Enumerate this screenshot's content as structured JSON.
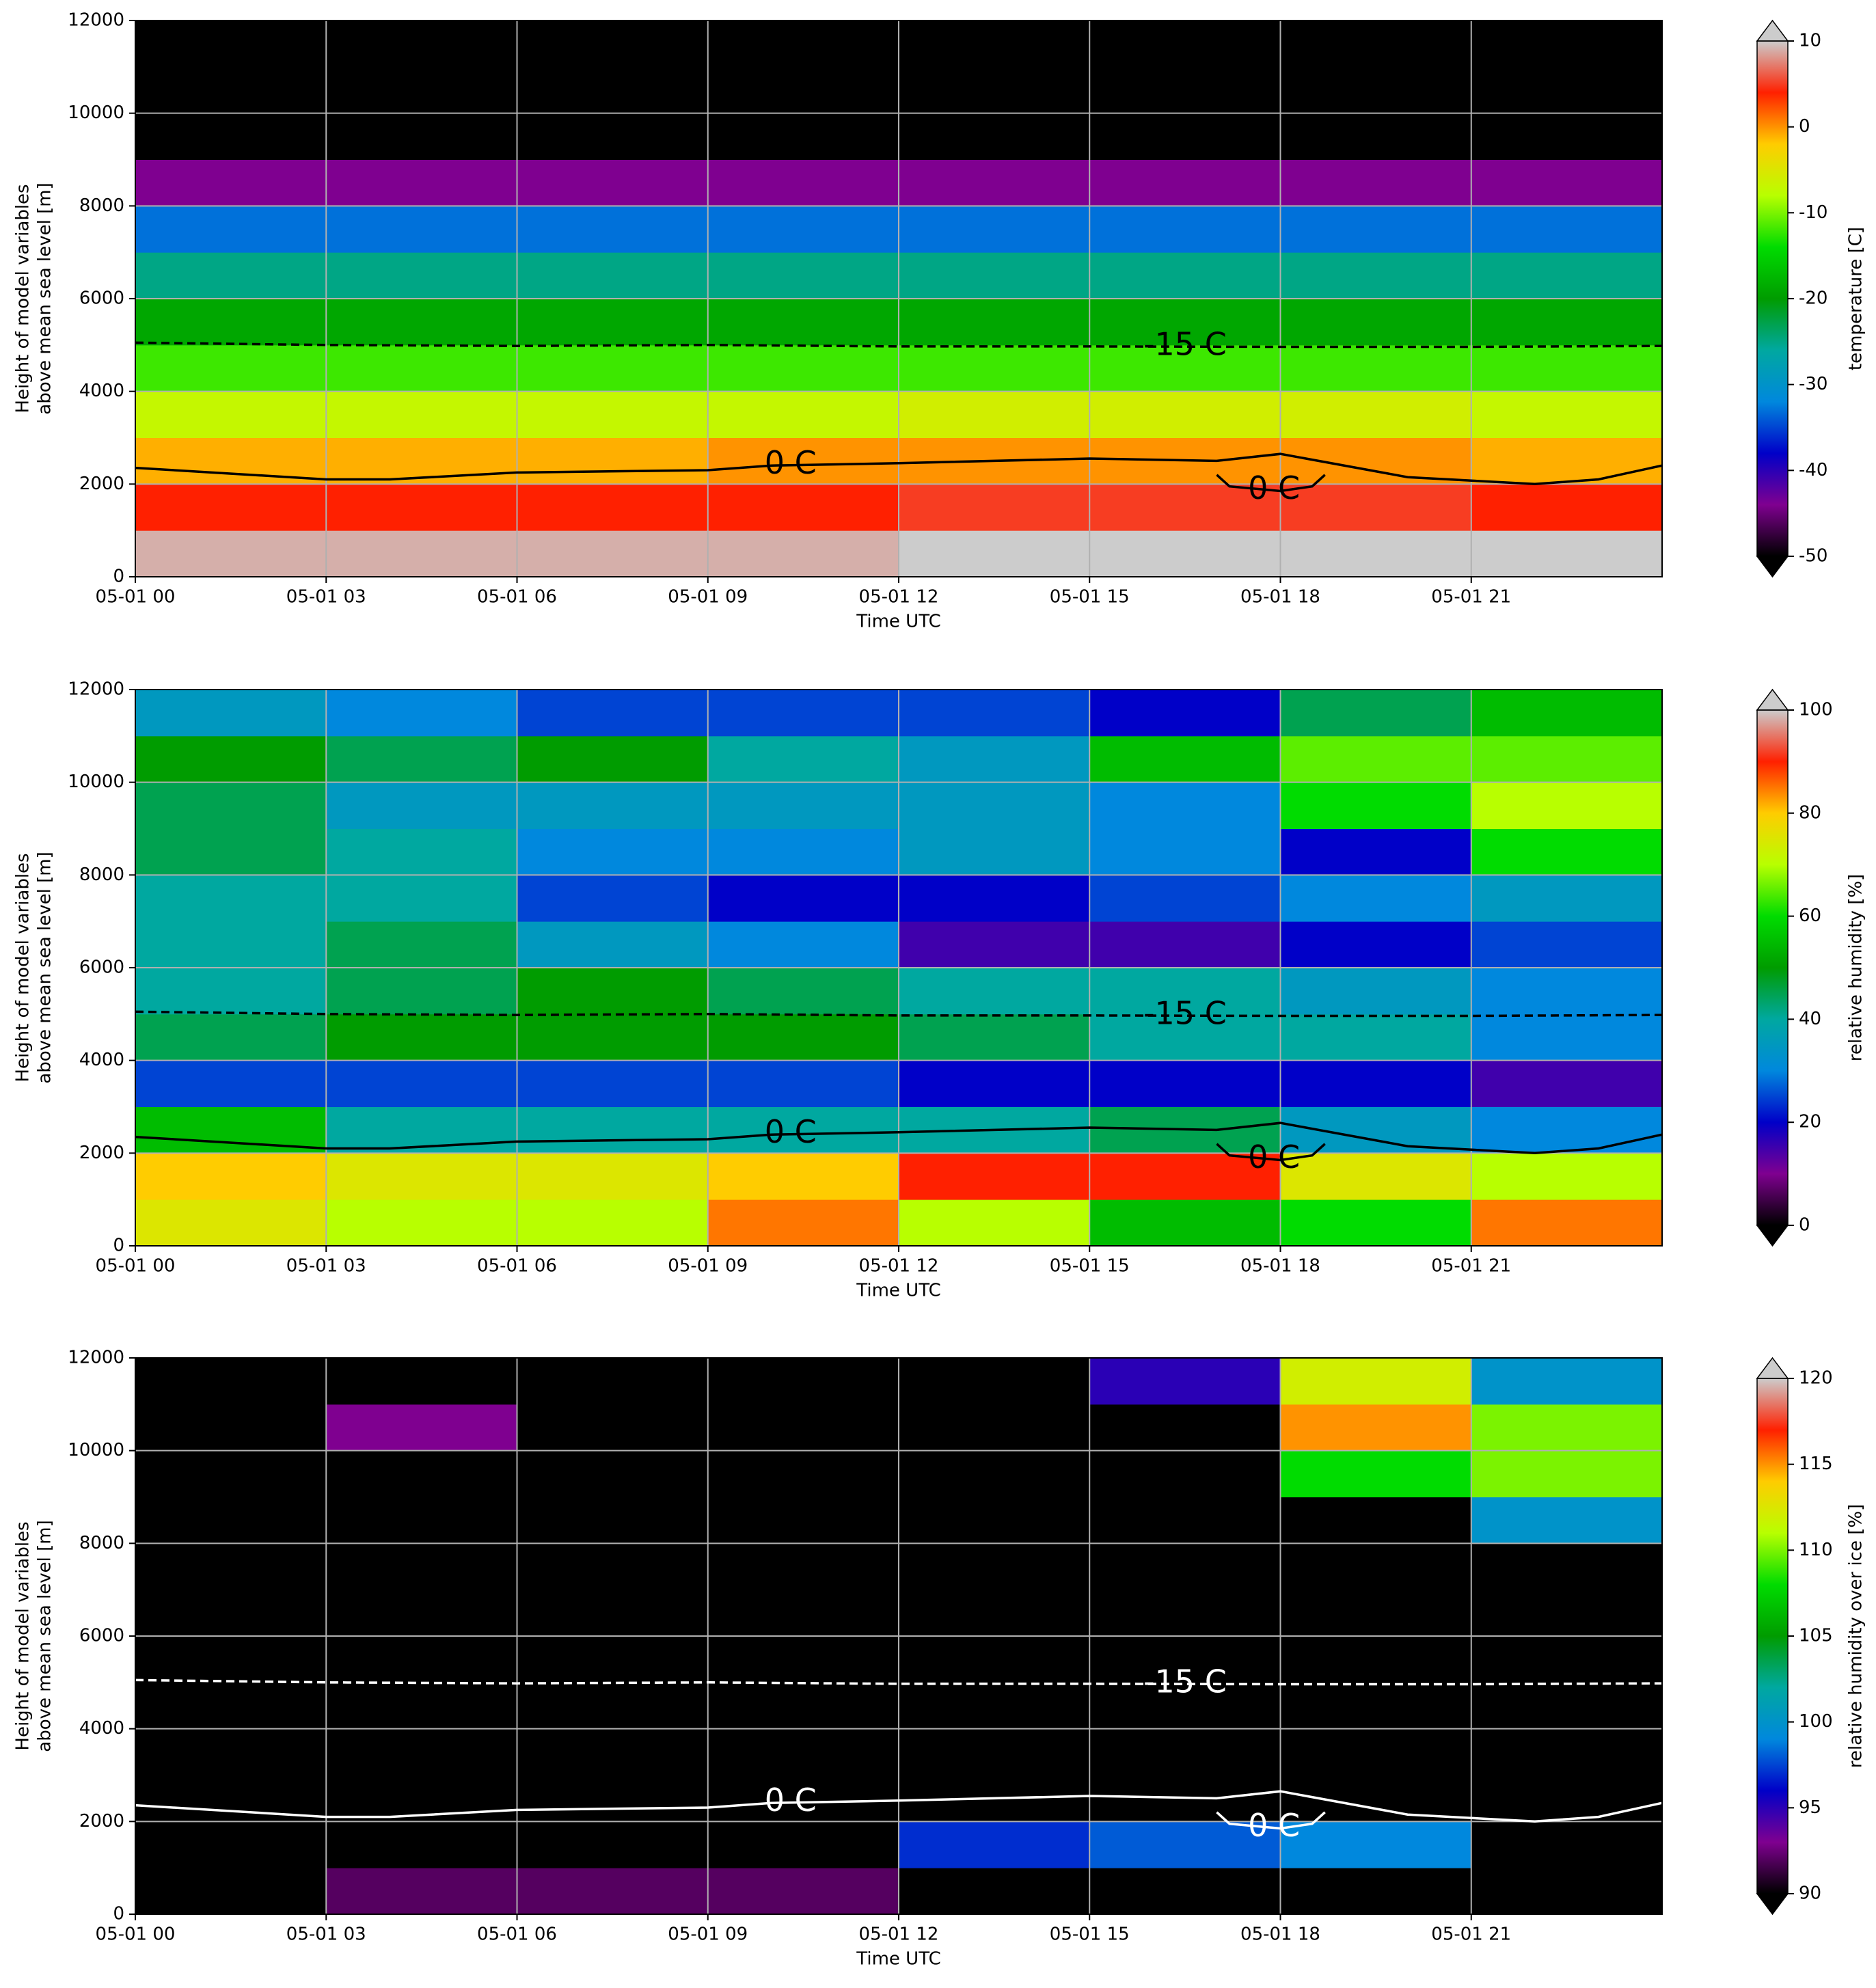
{
  "chart_data": [
    {
      "type": "heatmap",
      "ylabel": [
        "Height of model variables",
        "above mean sea level [m]"
      ],
      "xlabel": "Time UTC",
      "xlim": [
        0,
        24
      ],
      "ylim": [
        0,
        12000
      ],
      "xticks": [
        {
          "value": 0,
          "label": "05-01 00"
        },
        {
          "value": 3,
          "label": "05-01 03"
        },
        {
          "value": 6,
          "label": "05-01 06"
        },
        {
          "value": 9,
          "label": "05-01 09"
        },
        {
          "value": 12,
          "label": "05-01 12"
        },
        {
          "value": 15,
          "label": "05-01 15"
        },
        {
          "value": 18,
          "label": "05-01 18"
        },
        {
          "value": 21,
          "label": "05-01 21"
        }
      ],
      "yticks": [
        0,
        2000,
        4000,
        6000,
        8000,
        10000,
        12000
      ],
      "grid": true,
      "x_edges": [
        0,
        3,
        6,
        9,
        12,
        15,
        18,
        21,
        24
      ],
      "y_edges": [
        0,
        1000,
        2000,
        3000,
        4000,
        5000,
        6000,
        7000,
        8000,
        9000,
        10000,
        11000,
        12000
      ],
      "values": [
        [
          9,
          9,
          9,
          9,
          11,
          12,
          12,
          10
        ],
        [
          4,
          4,
          4,
          4,
          5,
          5,
          5,
          4
        ],
        [
          -1,
          -1,
          -1,
          0,
          0,
          0,
          0,
          -1
        ],
        [
          -7,
          -7,
          -7,
          -7,
          -6,
          -6,
          -6,
          -7
        ],
        [
          -12,
          -12,
          -12,
          -12,
          -12,
          -12,
          -12,
          -12
        ],
        [
          -19,
          -19,
          -19,
          -19,
          -19,
          -19,
          -19,
          -19
        ],
        [
          -25,
          -25,
          -25,
          -25,
          -25,
          -25,
          -25,
          -25
        ],
        [
          -33,
          -33,
          -33,
          -33,
          -33,
          -33,
          -33,
          -33
        ],
        [
          -44,
          -44,
          -44,
          -44,
          -44,
          -44,
          -44,
          -44
        ],
        [
          -55,
          -55,
          -55,
          -55,
          -55,
          -55,
          -55,
          -55
        ],
        [
          -55,
          -55,
          -55,
          -55,
          -55,
          -55,
          -55,
          -55
        ],
        [
          -55,
          -55,
          -55,
          -55,
          -55,
          -55,
          -55,
          -55
        ]
      ],
      "colors": [
        "#000000",
        "#7f0090",
        "#0000c8",
        "#0088dd",
        "#00a8a0",
        "#009c00",
        "#00dc00",
        "#b8ff00",
        "#ffcc00",
        "#ff2000",
        "#cccccc"
      ],
      "colorbar": {
        "label": "temperature [C]",
        "lim": [
          -50,
          10
        ],
        "ticks": [
          -50,
          -40,
          -30,
          -20,
          -10,
          0,
          10
        ]
      },
      "contour_color": "#000000",
      "contours": [
        {
          "name": "0 C",
          "x": [
            0,
            3,
            4,
            6,
            9,
            10,
            12,
            15,
            17,
            18,
            20,
            22,
            23,
            24
          ],
          "y": [
            2350,
            2100,
            2100,
            2250,
            2300,
            2400,
            2450,
            2550,
            2500,
            2650,
            2150,
            2000,
            2100,
            2400
          ]
        },
        {
          "name": "0 C",
          "x": [
            17,
            17.2,
            18,
            18.5,
            18.7
          ],
          "y": [
            2200,
            1950,
            1850,
            1950,
            2200
          ]
        },
        {
          "name": "-15 C",
          "x": [
            0,
            3,
            6,
            9,
            12,
            15,
            18,
            21,
            24
          ],
          "y": [
            5050,
            5000,
            4980,
            5000,
            4970,
            4970,
            4960,
            4960,
            4980
          ],
          "dashed": true
        }
      ]
    },
    {
      "type": "heatmap",
      "ylabel": [
        "Height of model variables",
        "above mean sea level [m]"
      ],
      "xlabel": "Time UTC",
      "xlim": [
        0,
        24
      ],
      "ylim": [
        0,
        12000
      ],
      "xticks": [
        {
          "value": 0,
          "label": "05-01 00"
        },
        {
          "value": 3,
          "label": "05-01 03"
        },
        {
          "value": 6,
          "label": "05-01 06"
        },
        {
          "value": 9,
          "label": "05-01 09"
        },
        {
          "value": 12,
          "label": "05-01 12"
        },
        {
          "value": 15,
          "label": "05-01 15"
        },
        {
          "value": 18,
          "label": "05-01 18"
        },
        {
          "value": 21,
          "label": "05-01 21"
        }
      ],
      "yticks": [
        0,
        2000,
        4000,
        6000,
        8000,
        10000,
        12000
      ],
      "grid": true,
      "x_edges": [
        0,
        3,
        6,
        9,
        12,
        15,
        18,
        21,
        24
      ],
      "y_edges": [
        0,
        1000,
        2000,
        3000,
        4000,
        5000,
        6000,
        7000,
        8000,
        9000,
        10000,
        11000,
        12000
      ],
      "values": [
        [
          75,
          70,
          70,
          85,
          70,
          55,
          60,
          85
        ],
        [
          80,
          75,
          75,
          80,
          90,
          90,
          75,
          70
        ],
        [
          55,
          40,
          40,
          40,
          40,
          45,
          35,
          30
        ],
        [
          25,
          25,
          25,
          25,
          20,
          20,
          20,
          15
        ],
        [
          45,
          50,
          50,
          50,
          45,
          40,
          40,
          30
        ],
        [
          40,
          45,
          50,
          45,
          40,
          40,
          35,
          30
        ],
        [
          40,
          45,
          35,
          30,
          15,
          15,
          20,
          25
        ],
        [
          40,
          40,
          25,
          20,
          20,
          25,
          30,
          35
        ],
        [
          45,
          40,
          30,
          30,
          35,
          30,
          20,
          60
        ],
        [
          45,
          35,
          35,
          35,
          35,
          30,
          60,
          70
        ],
        [
          50,
          45,
          50,
          40,
          35,
          55,
          65,
          65
        ],
        [
          35,
          30,
          25,
          25,
          25,
          20,
          45,
          55
        ]
      ],
      "colors": [
        "#000000",
        "#7f0090",
        "#0000c8",
        "#0088dd",
        "#00a8a0",
        "#009c00",
        "#00dc00",
        "#b8ff00",
        "#ffcc00",
        "#ff2000",
        "#cccccc"
      ],
      "colorbar": {
        "label": "relative humidity [%]",
        "lim": [
          0,
          100
        ],
        "ticks": [
          0,
          20,
          40,
          60,
          80,
          100
        ]
      },
      "contour_color": "#000000",
      "contours": [
        {
          "name": "0 C",
          "x": [
            0,
            3,
            4,
            6,
            9,
            10,
            12,
            15,
            17,
            18,
            20,
            22,
            23,
            24
          ],
          "y": [
            2350,
            2100,
            2100,
            2250,
            2300,
            2400,
            2450,
            2550,
            2500,
            2650,
            2150,
            2000,
            2100,
            2400
          ]
        },
        {
          "name": "0 C",
          "x": [
            17,
            17.2,
            18,
            18.5,
            18.7
          ],
          "y": [
            2200,
            1950,
            1850,
            1950,
            2200
          ]
        },
        {
          "name": "-15 C",
          "x": [
            0,
            3,
            6,
            9,
            12,
            15,
            18,
            21,
            24
          ],
          "y": [
            5050,
            5000,
            4980,
            5000,
            4970,
            4970,
            4960,
            4960,
            4980
          ],
          "dashed": true
        }
      ]
    },
    {
      "type": "heatmap",
      "ylabel": [
        "Height of model variables",
        "above mean sea level [m]"
      ],
      "xlabel": "Time UTC",
      "xlim": [
        0,
        24
      ],
      "ylim": [
        0,
        12000
      ],
      "xticks": [
        {
          "value": 0,
          "label": "05-01 00"
        },
        {
          "value": 3,
          "label": "05-01 03"
        },
        {
          "value": 6,
          "label": "05-01 06"
        },
        {
          "value": 9,
          "label": "05-01 09"
        },
        {
          "value": 12,
          "label": "05-01 12"
        },
        {
          "value": 15,
          "label": "05-01 15"
        },
        {
          "value": 18,
          "label": "05-01 18"
        },
        {
          "value": 21,
          "label": "05-01 21"
        }
      ],
      "yticks": [
        0,
        2000,
        4000,
        6000,
        8000,
        10000,
        12000
      ],
      "grid": true,
      "x_edges": [
        0,
        3,
        6,
        9,
        12,
        15,
        18,
        21,
        24
      ],
      "y_edges": [
        0,
        1000,
        2000,
        3000,
        4000,
        5000,
        6000,
        7000,
        8000,
        9000,
        10000,
        11000,
        12000
      ],
      "values": [
        [
          0,
          92,
          92,
          92,
          85,
          85,
          85,
          85
        ],
        [
          85,
          85,
          85,
          85,
          97,
          98,
          99,
          85
        ],
        [
          80,
          80,
          80,
          80,
          80,
          80,
          80,
          80
        ],
        [
          80,
          80,
          80,
          80,
          80,
          80,
          80,
          80
        ],
        [
          80,
          80,
          80,
          80,
          80,
          80,
          80,
          80
        ],
        [
          80,
          80,
          80,
          80,
          80,
          80,
          80,
          80
        ],
        [
          80,
          80,
          80,
          80,
          80,
          80,
          80,
          80
        ],
        [
          80,
          80,
          80,
          80,
          80,
          80,
          80,
          80
        ],
        [
          80,
          80,
          80,
          80,
          80,
          80,
          90,
          100
        ],
        [
          80,
          80,
          80,
          80,
          80,
          80,
          108,
          110
        ],
        [
          80,
          93,
          80,
          80,
          80,
          80,
          115,
          110
        ],
        [
          80,
          80,
          80,
          80,
          80,
          95,
          112,
          100
        ]
      ],
      "colors": [
        "#000000",
        "#7f0090",
        "#0000c8",
        "#0088dd",
        "#00a8a0",
        "#009c00",
        "#00dc00",
        "#b8ff00",
        "#ffcc00",
        "#ff2000",
        "#cccccc"
      ],
      "colorbar": {
        "label": "relative humidity over ice [%]",
        "lim": [
          90,
          120
        ],
        "ticks": [
          90,
          95,
          100,
          105,
          110,
          115,
          120
        ]
      },
      "contour_color": "#ffffff",
      "contours": [
        {
          "name": "0 C",
          "x": [
            0,
            3,
            4,
            6,
            9,
            10,
            12,
            15,
            17,
            18,
            20,
            22,
            23,
            24
          ],
          "y": [
            2350,
            2100,
            2100,
            2250,
            2300,
            2400,
            2450,
            2550,
            2500,
            2650,
            2150,
            2000,
            2100,
            2400
          ]
        },
        {
          "name": "0 C",
          "x": [
            17,
            17.2,
            18,
            18.5,
            18.7
          ],
          "y": [
            2200,
            1950,
            1850,
            1950,
            2200
          ]
        },
        {
          "name": "-15 C",
          "x": [
            0,
            3,
            6,
            9,
            12,
            15,
            18,
            21,
            24
          ],
          "y": [
            5050,
            5000,
            4980,
            5000,
            4970,
            4970,
            4960,
            4960,
            4980
          ],
          "dashed": true
        }
      ]
    }
  ]
}
